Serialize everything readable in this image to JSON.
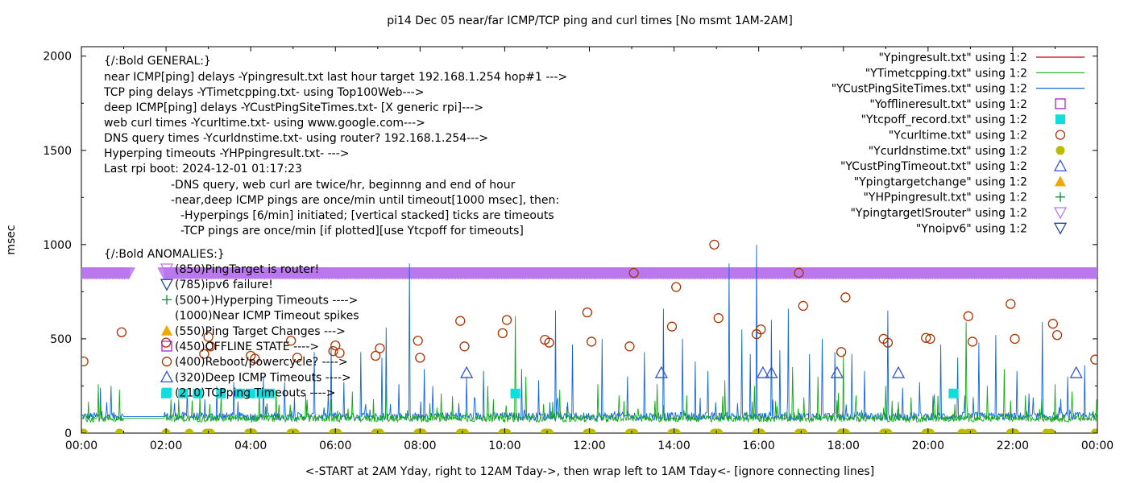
{
  "chart_data": {
    "type": "line",
    "title": "pi14 Dec 05  near/far ICMP/TCP ping and curl times [No msmt 1AM-2AM]",
    "xlabel": "<-START at 2AM Yday, right to 12AM Tday->, then wrap left to 1AM Tday<- [ignore connecting lines]",
    "ylabel": "msec",
    "xlim": [
      0,
      24
    ],
    "ylim": [
      0,
      2050
    ],
    "x_unit": "hours",
    "x_tick_labels": [
      "00:00",
      "02:00",
      "04:00",
      "06:00",
      "08:00",
      "10:00",
      "12:00",
      "14:00",
      "16:00",
      "18:00",
      "20:00",
      "22:00",
      "00:00"
    ],
    "y_tick_values": [
      0,
      500,
      1000,
      1500,
      2000
    ],
    "y_tick_labels": [
      "0",
      "500",
      "1000",
      "1500",
      "2000"
    ],
    "grid": false,
    "legend_position": "top-right",
    "legend": [
      {
        "label": "\"Ypingresult.txt\" using 1:2",
        "color": "#cc0000",
        "marker": "line"
      },
      {
        "label": "\"YTimetcpping.txt\" using 1:2",
        "color": "#11aa11",
        "marker": "line"
      },
      {
        "label": "\"YCustPingSiteTimes.txt\" using 1:2",
        "color": "#1166dd",
        "marker": "line"
      },
      {
        "label": "\"Yofflineresult.txt\" using 1:2",
        "color": "#aa22cc",
        "marker": "square-open"
      },
      {
        "label": "\"Ytcpoff_record.txt\" using 1:2",
        "color": "#11dddd",
        "marker": "square-filled"
      },
      {
        "label": "\"Ycurltime.txt\" using 1:2",
        "color": "#aa3300",
        "marker": "circle-open"
      },
      {
        "label": "\"Ycurldnstime.txt\" using 1:2",
        "color": "#bbbb00",
        "marker": "circle-filled"
      },
      {
        "label": "\"YCustPingTimeout.txt\" using 1:2",
        "color": "#3355cc",
        "marker": "triangle-up-open"
      },
      {
        "label": "\"Ypingtargetchange\" using 1:2",
        "color": "#eeaa00",
        "marker": "triangle-up-filled"
      },
      {
        "label": "\"YHPpingresult.txt\" using 1:2",
        "color": "#118833",
        "marker": "plus"
      },
      {
        "label": "\"YpingtargetISrouter\" using 1:2",
        "color": "#bb77ee",
        "marker": "triangle-down-open"
      },
      {
        "label": "\"Ynoipv6\" using 1:2",
        "color": "#224499",
        "marker": "triangle-down-open"
      }
    ],
    "notes": [
      "{/:Bold GENERAL:}",
      "near ICMP[ping] delays -Ypingresult.txt last hour target 192.168.1.254 hop#1 --->",
      "TCP ping delays -YTimetcpping.txt- using Top100Web--->",
      "deep ICMP[ping] delays -YCustPingSiteTimes.txt- [X generic rpi]--->",
      "web curl times -Ycurltime.txt- using www.google.com--->",
      "DNS query times -Ycurldnstime.txt- using router? 192.168.1.254--->",
      "Hyperping timeouts -YHPpingresult.txt- --->",
      "Last rpi boot: 2024-12-01 01:17:23",
      "-DNS query, web curl are twice/hr, beginnng and end of hour",
      "-near,deep ICMP pings are once/min until timeout[1000 msec], then:",
      "-Hyperpings [6/min] initiated; [vertical stacked] ticks are timeouts",
      "-TCP pings are once/min [if plotted][use Ytcpoff for timeouts]",
      "{/:Bold ANOMALIES:}"
    ],
    "anomaly_legend": [
      {
        "label": "(850)PingTarget is router!",
        "marker": "triangle-down-open",
        "color": "#bb77ee",
        "y": 850
      },
      {
        "label": "(785)ipv6 failure!",
        "marker": "triangle-down-open",
        "color": "#224499",
        "y": 785
      },
      {
        "label": "(500+)Hyperping Timeouts ---->",
        "marker": "plus",
        "color": "#118833",
        "y": 700
      },
      {
        "label": "(1000)Near ICMP Timeout spikes",
        "marker": "none",
        "color": "#000000",
        "y": 620
      },
      {
        "label": "(550)Ping Target Changes --->",
        "marker": "triangle-up-filled",
        "color": "#eeaa00",
        "y": 545
      },
      {
        "label": "(450)OFFLINE STATE ---->",
        "marker": "square-open",
        "color": "#aa22cc",
        "y": 460
      },
      {
        "label": "(400)Reboot/powercycle? ---->",
        "marker": "circle-open",
        "color": "#aa3300",
        "y": 380
      },
      {
        "label": "(320)Deep ICMP Timeouts ---->",
        "marker": "triangle-up-open",
        "color": "#3355cc",
        "y": 295
      },
      {
        "label": "(210)TCPping Timeouts ---->",
        "marker": "square-filled",
        "color": "#11dddd",
        "y": 210
      }
    ],
    "series": [
      {
        "name": "\"YpingtargetISrouter\" using 1:2",
        "kind": "markers",
        "marker": "triangle-down-open",
        "color": "#bb77ee",
        "band": {
          "y": 850,
          "ranges": [
            [
              0.0,
              1.15
            ],
            [
              1.95,
              24.0
            ]
          ]
        }
      },
      {
        "name": "\"Ycurldnstime.txt\" using 1:2",
        "kind": "markers",
        "marker": "circle-filled",
        "color": "#bbbb00",
        "x": [
          0.05,
          0.9,
          2.0,
          2.55,
          2.95,
          3.0,
          3.05,
          3.95,
          4.05,
          4.95,
          5.0,
          5.05,
          5.95,
          6.0,
          6.05,
          6.95,
          7.0,
          7.05,
          7.95,
          8.0,
          8.05,
          8.95,
          9.0,
          9.05,
          9.95,
          10.0,
          10.05,
          10.95,
          11.0,
          11.05,
          11.95,
          12.0,
          12.05,
          12.95,
          13.0,
          13.05,
          13.95,
          14.0,
          14.05,
          14.95,
          15.0,
          15.05,
          15.95,
          16.0,
          16.05,
          16.95,
          17.0,
          17.05,
          17.95,
          18.0,
          18.05,
          18.95,
          19.0,
          19.05,
          19.95,
          20.0,
          20.05,
          20.8,
          20.95,
          21.05,
          21.95,
          22.0,
          22.05,
          22.8,
          22.9,
          23.95,
          24.0
        ],
        "y": [
          0,
          0,
          0,
          0,
          0,
          0,
          0,
          0,
          0,
          0,
          0,
          0,
          0,
          0,
          0,
          0,
          0,
          0,
          0,
          0,
          0,
          0,
          0,
          0,
          0,
          0,
          0,
          0,
          0,
          0,
          0,
          0,
          0,
          0,
          0,
          0,
          0,
          0,
          0,
          0,
          0,
          0,
          0,
          0,
          0,
          0,
          0,
          0,
          0,
          0,
          0,
          0,
          0,
          0,
          0,
          0,
          0,
          0,
          0,
          0,
          0,
          0,
          0,
          0,
          0,
          0,
          0
        ]
      },
      {
        "name": "\"Ycurltime.txt\" using 1:2",
        "kind": "markers",
        "marker": "circle-open",
        "color": "#aa3300",
        "x": [
          0.05,
          0.95,
          2.0,
          2.9,
          3.0,
          3.05,
          4.0,
          4.1,
          4.95,
          5.1,
          5.95,
          6.0,
          6.1,
          6.95,
          7.05,
          7.95,
          8.0,
          8.95,
          9.05,
          9.95,
          10.05,
          10.95,
          11.05,
          11.95,
          12.05,
          12.95,
          13.05,
          13.95,
          14.05,
          14.95,
          15.05,
          15.95,
          16.05,
          16.95,
          17.05,
          17.95,
          18.05,
          18.95,
          19.05,
          19.95,
          20.05,
          20.95,
          21.05,
          21.95,
          22.05,
          22.95,
          23.05,
          23.95
        ],
        "y": [
          380,
          535,
          480,
          420,
          510,
          460,
          410,
          395,
          490,
          400,
          435,
          465,
          425,
          410,
          450,
          490,
          400,
          595,
          460,
          530,
          600,
          495,
          480,
          640,
          485,
          460,
          850,
          565,
          775,
          1000,
          610,
          525,
          550,
          850,
          675,
          430,
          720,
          500,
          480,
          505,
          500,
          620,
          485,
          685,
          500,
          580,
          520,
          390
        ]
      },
      {
        "name": "\"YCustPingTimeout.txt\" using 1:2",
        "kind": "markers",
        "marker": "triangle-up-open",
        "color": "#3355cc",
        "x": [
          9.1,
          13.7,
          16.1,
          16.3,
          17.85,
          19.3,
          23.5
        ],
        "y": [
          320,
          320,
          320,
          320,
          320,
          320,
          320
        ]
      },
      {
        "name": "\"Ytcpoff_record.txt\" using 1:2",
        "kind": "markers",
        "marker": "square-filled",
        "color": "#11dddd",
        "x": [
          2.0,
          2.4,
          2.75,
          3.3,
          3.75,
          4.0,
          4.25,
          4.45,
          10.25,
          20.6
        ],
        "y": [
          210,
          210,
          210,
          210,
          210,
          210,
          210,
          210,
          210,
          210
        ]
      },
      {
        "name": "\"YCustPingSiteTimes.txt\" using 1:2",
        "kind": "line",
        "color": "#1166dd",
        "baseline": 80,
        "spikes": [
          [
            0.45,
            240
          ],
          [
            0.7,
            250
          ],
          [
            1.0,
            180
          ],
          [
            2.2,
            160
          ],
          [
            2.5,
            230
          ],
          [
            3.2,
            250
          ],
          [
            3.6,
            270
          ],
          [
            4.3,
            300
          ],
          [
            4.8,
            270
          ],
          [
            5.5,
            430
          ],
          [
            5.9,
            460
          ],
          [
            6.2,
            270
          ],
          [
            6.6,
            430
          ],
          [
            7.1,
            400
          ],
          [
            7.2,
            560
          ],
          [
            7.5,
            260
          ],
          [
            7.75,
            900
          ],
          [
            8.1,
            340
          ],
          [
            8.3,
            250
          ],
          [
            9.1,
            300
          ],
          [
            9.5,
            330
          ],
          [
            10.4,
            340
          ],
          [
            10.8,
            280
          ],
          [
            11.2,
            650
          ],
          [
            11.6,
            470
          ],
          [
            12.3,
            500
          ],
          [
            12.9,
            300
          ],
          [
            13.3,
            430
          ],
          [
            13.75,
            660
          ],
          [
            14.2,
            500
          ],
          [
            14.5,
            380
          ],
          [
            14.8,
            330
          ],
          [
            15.3,
            900
          ],
          [
            15.6,
            550
          ],
          [
            15.8,
            420
          ],
          [
            15.95,
            1000
          ],
          [
            16.3,
            600
          ],
          [
            16.5,
            440
          ],
          [
            16.7,
            660
          ],
          [
            17.2,
            420
          ],
          [
            17.5,
            500
          ],
          [
            17.8,
            430
          ],
          [
            18.2,
            420
          ],
          [
            18.5,
            330
          ],
          [
            19.05,
            650
          ],
          [
            19.4,
            240
          ],
          [
            19.8,
            270
          ],
          [
            20.3,
            470
          ],
          [
            20.7,
            400
          ],
          [
            21.2,
            480
          ],
          [
            21.6,
            520
          ],
          [
            22.1,
            330
          ],
          [
            22.7,
            590
          ],
          [
            23.3,
            300
          ],
          [
            23.7,
            360
          ]
        ]
      },
      {
        "name": "\"YTimetcpping.txt\" using 1:2",
        "kind": "line",
        "color": "#11aa11",
        "baseline": 70,
        "spikes": [
          [
            0.4,
            260
          ],
          [
            0.9,
            230
          ],
          [
            2.3,
            180
          ],
          [
            2.8,
            200
          ],
          [
            3.3,
            190
          ],
          [
            4.2,
            210
          ],
          [
            4.6,
            230
          ],
          [
            5.3,
            200
          ],
          [
            5.9,
            180
          ],
          [
            6.4,
            220
          ],
          [
            6.9,
            180
          ],
          [
            7.2,
            260
          ],
          [
            8.5,
            210
          ],
          [
            9.6,
            250
          ],
          [
            10.25,
            620
          ],
          [
            10.5,
            300
          ],
          [
            11.3,
            230
          ],
          [
            12.2,
            260
          ],
          [
            12.7,
            200
          ],
          [
            13.6,
            260
          ],
          [
            14.3,
            200
          ],
          [
            15.2,
            280
          ],
          [
            15.9,
            250
          ],
          [
            16.4,
            170
          ],
          [
            16.8,
            350
          ],
          [
            17.4,
            300
          ],
          [
            18.0,
            420
          ],
          [
            18.3,
            200
          ],
          [
            19.0,
            250
          ],
          [
            19.6,
            190
          ],
          [
            20.9,
            590
          ],
          [
            21.4,
            250
          ],
          [
            21.8,
            340
          ],
          [
            22.3,
            200
          ],
          [
            23.0,
            260
          ],
          [
            23.4,
            220
          ]
        ]
      }
    ]
  }
}
